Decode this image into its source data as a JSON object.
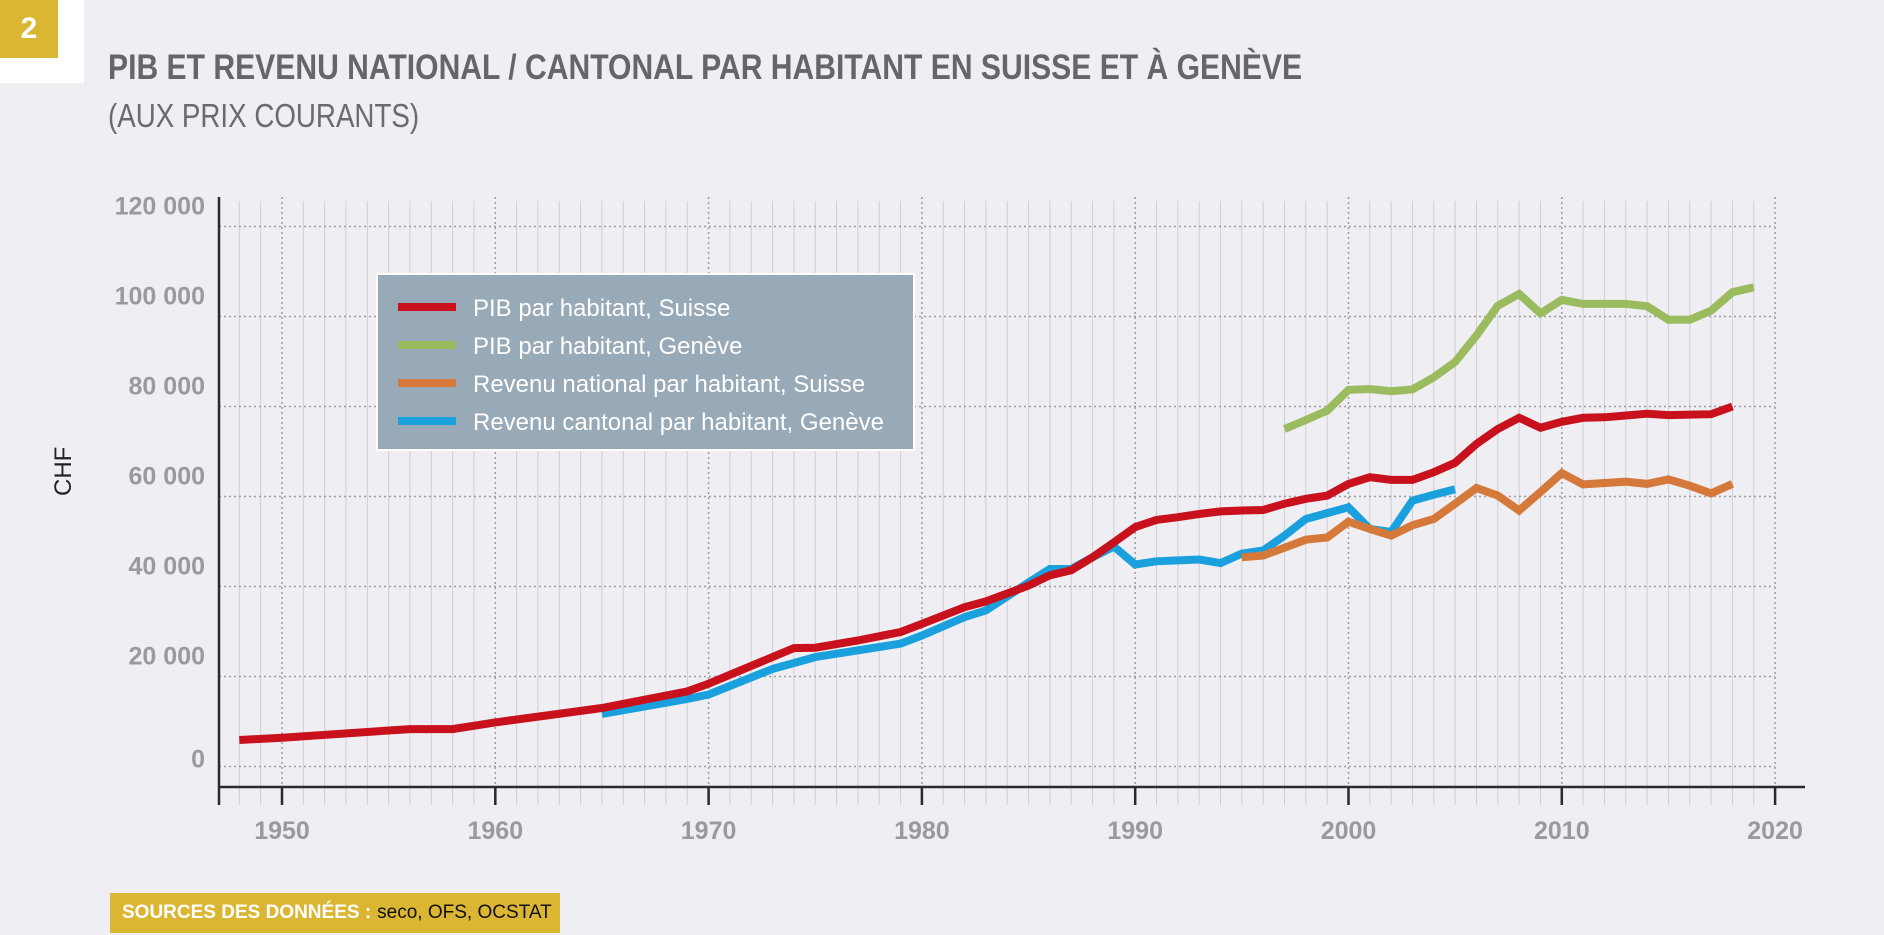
{
  "figure_number": "2",
  "title": "PIB ET REVENU NATIONAL / CANTONAL PAR HABITANT EN SUISSE ET À GENÈVE",
  "subtitle": "(AUX PRIX COURANTS)",
  "source_label": "SOURCES DES DONNÉES :",
  "source_value": "seco, OFS, OCSTAT",
  "chart_data": {
    "type": "line",
    "title": "PIB et revenu national / cantonal par habitant en Suisse et à Genève (aux prix courants)",
    "xlabel": "",
    "ylabel": "CHF",
    "xlim": [
      1947,
      2021
    ],
    "ylim": [
      -5000,
      122000
    ],
    "xticks": [
      1950,
      1960,
      1970,
      1980,
      1990,
      2000,
      2010,
      2020
    ],
    "xtick_labels": [
      "1950",
      "1960",
      "1970",
      "1980",
      "1990",
      "2000",
      "2010",
      "2020"
    ],
    "yticks": [
      0,
      20000,
      40000,
      60000,
      80000,
      100000,
      120000
    ],
    "ytick_labels": [
      "0",
      "20 000",
      "40 000",
      "60 000",
      "80 000",
      "100 000",
      "120 000"
    ],
    "grid": true,
    "legend_position": "top-left",
    "series": [
      {
        "name": "PIB par habitant, Suisse",
        "color": "#c8111c",
        "x": [
          1948,
          1950,
          1956,
          1958,
          1960,
          1965,
          1969,
          1970,
          1974,
          1975,
          1977,
          1979,
          1980,
          1982,
          1983,
          1985,
          1986,
          1987,
          1988,
          1989,
          1990,
          1991,
          1992,
          1993,
          1994,
          1995,
          1996,
          1997,
          1998,
          1999,
          2000,
          2001,
          2002,
          2003,
          2004,
          2005,
          2006,
          2007,
          2008,
          2009,
          2010,
          2011,
          2012,
          2013,
          2014,
          2015,
          2016,
          2017,
          2018
        ],
        "y": [
          5900,
          6400,
          8300,
          8300,
          9800,
          13000,
          16700,
          18400,
          26300,
          26400,
          28000,
          29900,
          31700,
          35400,
          36700,
          40200,
          42500,
          43600,
          46500,
          49800,
          53200,
          54800,
          55400,
          56100,
          56700,
          56900,
          57000,
          58400,
          59500,
          60200,
          62800,
          64300,
          63700,
          63700,
          65400,
          67500,
          71700,
          75000,
          77500,
          75300,
          76600,
          77500,
          77600,
          78000,
          78400,
          78100,
          78200,
          78300,
          80000
        ]
      },
      {
        "name": "PIB par habitant, Genève",
        "color": "#9bbb5f",
        "x": [
          1997,
          1998,
          1999,
          2000,
          2001,
          2002,
          2003,
          2004,
          2005,
          2006,
          2007,
          2008,
          2009,
          2010,
          2011,
          2012,
          2013,
          2014,
          2015,
          2016,
          2017,
          2018,
          2019
        ],
        "y": [
          75000,
          77000,
          79100,
          83700,
          83900,
          83400,
          83800,
          86500,
          89900,
          95800,
          102400,
          105000,
          100700,
          103700,
          102800,
          102800,
          102800,
          102300,
          99300,
          99300,
          101300,
          105400,
          106500
        ]
      },
      {
        "name": "Revenu national par habitant, Suisse",
        "color": "#d5793a",
        "x": [
          1995,
          1996,
          1997,
          1998,
          1999,
          2000,
          2001,
          2002,
          2003,
          2004,
          2005,
          2006,
          2007,
          2008,
          2009,
          2010,
          2011,
          2012,
          2013,
          2014,
          2015,
          2016,
          2017,
          2018
        ],
        "y": [
          46500,
          46900,
          48600,
          50400,
          50900,
          54400,
          52800,
          51300,
          53600,
          55000,
          58400,
          61900,
          60200,
          56900,
          61000,
          65200,
          62700,
          63000,
          63300,
          62800,
          63800,
          62400,
          60700,
          62800
        ]
      },
      {
        "name": "Revenu cantonal par habitant, Genève",
        "color": "#1aa1dd",
        "x": [
          1965,
          1969,
          1970,
          1973,
          1975,
          1979,
          1980,
          1982,
          1983,
          1985,
          1986,
          1987,
          1988,
          1989,
          1990,
          1991,
          1992,
          1993,
          1994,
          1995,
          1996,
          1997,
          1998,
          1999,
          2000,
          2001,
          2002,
          2003,
          2004,
          2005
        ],
        "y": [
          11700,
          15000,
          16000,
          21700,
          24300,
          27300,
          29100,
          33200,
          34700,
          40900,
          43900,
          43900,
          46500,
          48900,
          44900,
          45600,
          45800,
          46000,
          45200,
          47300,
          48000,
          51300,
          55000,
          56300,
          57600,
          52800,
          52100,
          59100,
          60400,
          61600
        ]
      }
    ]
  }
}
